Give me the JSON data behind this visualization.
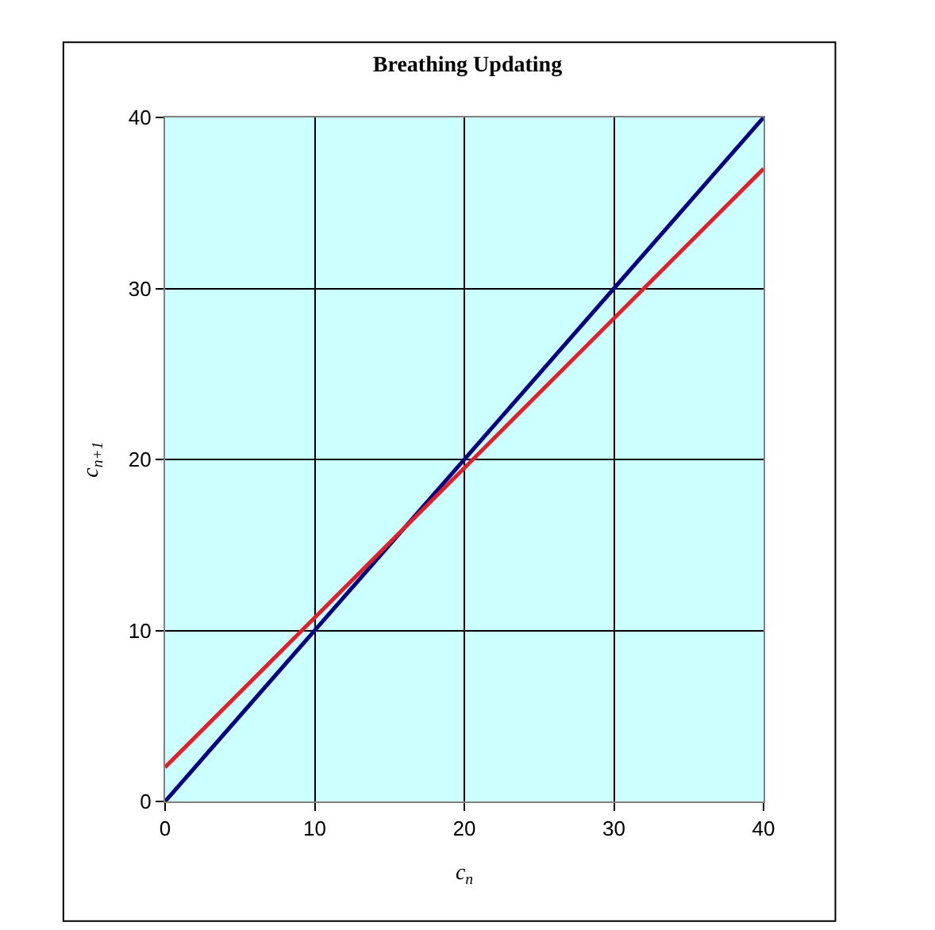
{
  "chart_data": {
    "type": "line",
    "title": "Breathing Updating",
    "xlabel": "c$_{n}$",
    "ylabel": "c$_{n+1}$",
    "x": [
      0,
      40
    ],
    "series": [
      {
        "color": "#000080",
        "values": [
          0,
          40
        ]
      },
      {
        "color": "#e0202a",
        "values": [
          2,
          37
        ]
      }
    ],
    "xlim": [
      0,
      40
    ],
    "ylim": [
      0,
      40
    ],
    "xticks": [
      0,
      10,
      20,
      30,
      40
    ],
    "yticks": [
      0,
      10,
      20,
      30,
      40
    ],
    "grid": true,
    "marker": "none",
    "line_style": "solid"
  }
}
